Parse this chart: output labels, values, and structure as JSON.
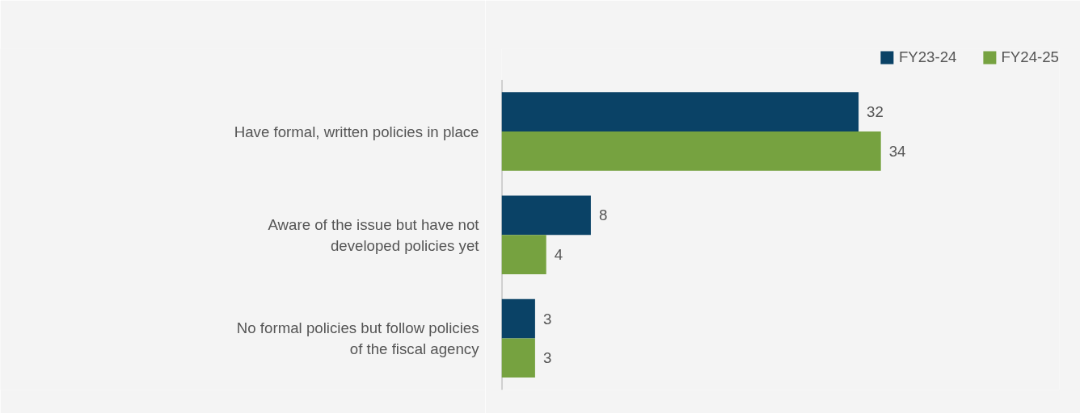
{
  "chart_data": {
    "type": "bar",
    "orientation": "horizontal",
    "categories": [
      "Have formal, written policies in place",
      "Aware of the issue but have not developed policies yet",
      "No formal policies but follow policies of the fiscal agency"
    ],
    "series": [
      {
        "name": "FY23-24",
        "color": "#0a4266",
        "values": [
          32,
          8,
          3
        ]
      },
      {
        "name": "FY24-25",
        "color": "#76a240",
        "values": [
          34,
          4,
          3
        ]
      }
    ],
    "xlim": [
      0,
      50
    ],
    "tick_labels": "y",
    "data_labels": true,
    "grid": false,
    "legend": "top right"
  }
}
